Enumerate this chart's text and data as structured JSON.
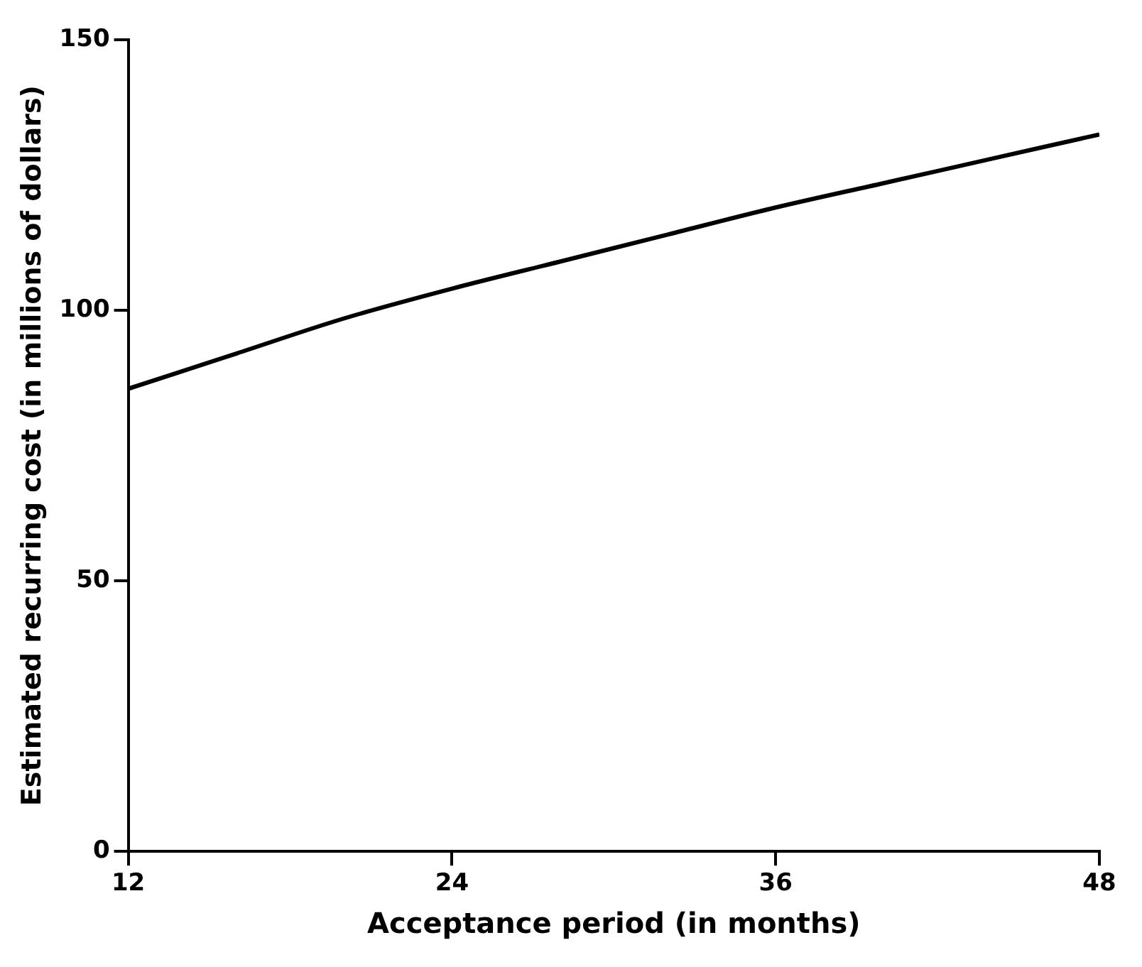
{
  "chart_data": {
    "type": "line",
    "xlabel": "Acceptance period (in months)",
    "ylabel": "Estimated recurring cost (in millions of dollars)",
    "x": [
      12,
      16,
      20,
      24,
      28,
      32,
      36,
      40,
      44,
      48
    ],
    "series": [
      {
        "color": "#000000",
        "values": [
          85.5,
          92,
          98.5,
          104,
          109,
          114,
          119,
          123.5,
          128,
          132.5
        ]
      }
    ],
    "xlim": [
      12,
      48
    ],
    "xticks": [
      12,
      24,
      36,
      48
    ],
    "ylim": [
      0,
      150
    ],
    "yticks": [
      0,
      50,
      100,
      150
    ],
    "grid": false,
    "legend": false,
    "marker": "none",
    "line_style": "solid"
  }
}
